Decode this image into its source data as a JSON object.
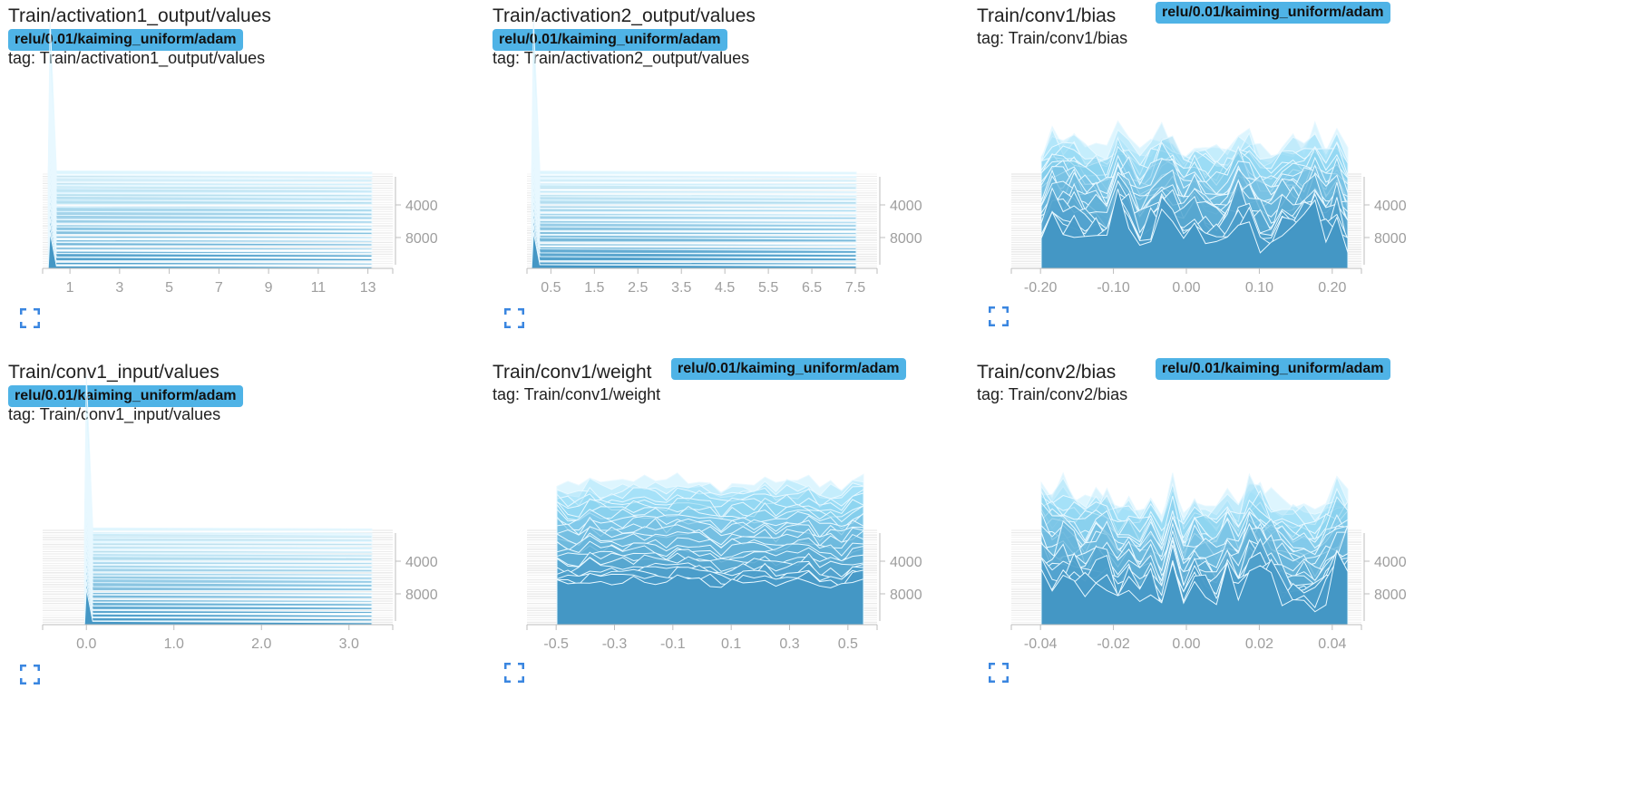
{
  "chart_data": [
    {
      "type": "histogram-offset",
      "title": "Train/activation1_output/values",
      "run": "relu/0.01/kaiming_uniform/adam",
      "tag_line": "tag: Train/activation1_output/values",
      "x_ticks": [
        "1",
        "3",
        "5",
        "7",
        "9",
        "11",
        "13"
      ],
      "x_tick_values": [
        1,
        3,
        5,
        7,
        9,
        11,
        13
      ],
      "xlim": [
        -0.1,
        14
      ],
      "step_ticks": [
        "4000",
        "8000"
      ],
      "shape": "spike",
      "spike_at": 0.2
    },
    {
      "type": "histogram-offset",
      "title": "Train/activation2_output/values",
      "run": "relu/0.01/kaiming_uniform/adam",
      "tag_line": "tag: Train/activation2_output/values",
      "x_ticks": [
        "0.5",
        "1.5",
        "2.5",
        "3.5",
        "4.5",
        "5.5",
        "6.5",
        "7.5"
      ],
      "x_tick_values": [
        0.5,
        1.5,
        2.5,
        3.5,
        4.5,
        5.5,
        6.5,
        7.5
      ],
      "xlim": [
        -0.05,
        8.0
      ],
      "step_ticks": [
        "4000",
        "8000"
      ],
      "shape": "spike",
      "spike_at": 0.1
    },
    {
      "type": "histogram-offset",
      "title": "Train/conv1/bias",
      "run": "relu/0.01/kaiming_uniform/adam",
      "tag_line": "tag: Train/conv1/bias",
      "x_ticks": [
        "-0.20",
        "-0.10",
        "0.00",
        "0.10",
        "0.20"
      ],
      "x_tick_values": [
        -0.2,
        -0.1,
        0.0,
        0.1,
        0.2
      ],
      "xlim": [
        -0.24,
        0.24
      ],
      "step_ticks": [
        "4000",
        "8000"
      ],
      "shape": "spiky"
    },
    {
      "type": "histogram-offset",
      "title": "Train/conv1_input/values",
      "run": "relu/0.01/kaiming_uniform/adam",
      "tag_line": "tag: Train/conv1_input/values",
      "x_ticks": [
        "0.0",
        "1.0",
        "2.0",
        "3.0"
      ],
      "x_tick_values": [
        0.0,
        1.0,
        2.0,
        3.0
      ],
      "xlim": [
        -0.5,
        3.5
      ],
      "step_ticks": [
        "4000",
        "8000"
      ],
      "shape": "spike",
      "spike_at": 0.0
    },
    {
      "type": "histogram-offset",
      "title": "Train/conv1/weight",
      "run": "relu/0.01/kaiming_uniform/adam",
      "tag_line": "tag: Train/conv1/weight",
      "x_ticks": [
        "-0.5",
        "-0.3",
        "-0.1",
        "0.1",
        "0.3",
        "0.5"
      ],
      "x_tick_values": [
        -0.5,
        -0.3,
        -0.1,
        0.1,
        0.3,
        0.5
      ],
      "xlim": [
        -0.6,
        0.6
      ],
      "step_ticks": [
        "4000",
        "8000"
      ],
      "shape": "broad"
    },
    {
      "type": "histogram-offset",
      "title": "Train/conv2/bias",
      "run": "relu/0.01/kaiming_uniform/adam",
      "tag_line": "tag: Train/conv2/bias",
      "x_ticks": [
        "-0.04",
        "-0.02",
        "0.00",
        "0.02",
        "0.04"
      ],
      "x_tick_values": [
        -0.04,
        -0.02,
        0.0,
        0.02,
        0.04
      ],
      "xlim": [
        -0.048,
        0.048
      ],
      "step_ticks": [
        "4000",
        "8000"
      ],
      "shape": "spiky"
    }
  ],
  "colors": {
    "run_badge": "#4fb3e6",
    "fill_front": "#3a8ebf",
    "fill_back": "#9fe3fb",
    "outline": "#e8f8ff",
    "axis": "#bdbdbd",
    "tick_text": "#9e9e9e",
    "expand_icon": "#3a86e0"
  },
  "icons": {
    "expand": "fullscreen-expand-icon"
  }
}
